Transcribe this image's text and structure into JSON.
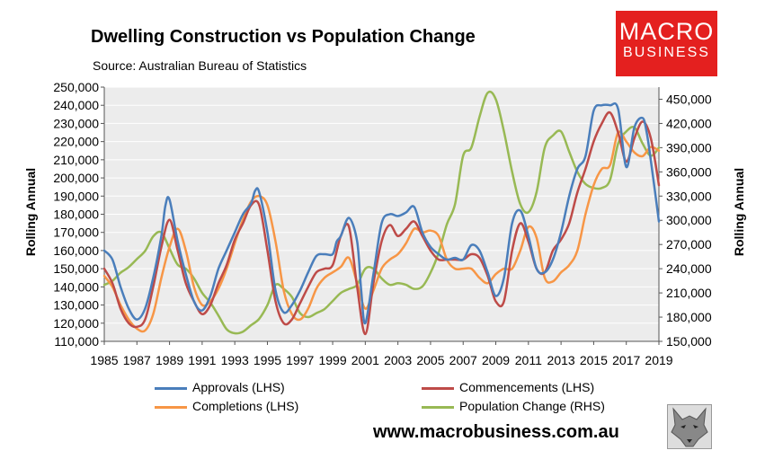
{
  "header": {
    "title": "Dwelling Construction vs Population Change",
    "source": "Source: Australian Bureau of Statistics"
  },
  "logo": {
    "line1": "MACRO",
    "line2": "BUSINESS"
  },
  "footer": {
    "website": "www.macrobusiness.com.au",
    "wolf_icon": "wolf-mascot-icon"
  },
  "colors": {
    "approvals": "#4a7ebb",
    "commencements": "#be4b48",
    "completions": "#f79646",
    "population": "#98b954",
    "gridline": "#d9d9d9",
    "plot_bg": "#ececec",
    "logo": "#e4201f"
  },
  "chart_data": {
    "type": "line",
    "ylabel": "Rolling Annual",
    "y2label": "Rolling Annual",
    "ylim": [
      110000,
      250000
    ],
    "y2lim": [
      150000,
      465000
    ],
    "yticks": [
      "110,000",
      "120,000",
      "130,000",
      "140,000",
      "150,000",
      "160,000",
      "170,000",
      "180,000",
      "190,000",
      "200,000",
      "210,000",
      "220,000",
      "230,000",
      "240,000",
      "250,000"
    ],
    "y2ticks": [
      "150,000",
      "180,000",
      "210,000",
      "240,000",
      "270,000",
      "300,000",
      "330,000",
      "360,000",
      "390,000",
      "420,000",
      "450,000"
    ],
    "xlim": [
      1985,
      2019
    ],
    "xticks": [
      "1985",
      "1987",
      "1989",
      "1991",
      "1993",
      "1995",
      "1997",
      "1999",
      "2001",
      "2003",
      "2005",
      "2007",
      "2009",
      "2011",
      "2013",
      "2015",
      "2017",
      "2019"
    ],
    "grid": true,
    "legend": "bottom",
    "series": [
      {
        "name": "Approvals (LHS)",
        "axis": "left",
        "x": [
          1985,
          1985.5,
          1986,
          1986.5,
          1987,
          1987.5,
          1988,
          1988.5,
          1988.75,
          1989,
          1989.5,
          1990,
          1990.5,
          1991,
          1991.5,
          1992,
          1992.5,
          1993,
          1993.5,
          1994,
          1994.25,
          1994.5,
          1995,
          1995.5,
          1996,
          1996.5,
          1997,
          1997.5,
          1998,
          1998.5,
          1999,
          1999.25,
          1999.5,
          2000,
          2000.5,
          2000.75,
          2001,
          2001.5,
          2002,
          2002.5,
          2003,
          2003.5,
          2004,
          2004.5,
          2005,
          2005.5,
          2006,
          2006.5,
          2007,
          2007.5,
          2008,
          2008.5,
          2009,
          2009.5,
          2010,
          2010.5,
          2011,
          2011.5,
          2012,
          2012.5,
          2013,
          2013.5,
          2014,
          2014.5,
          2015,
          2015.5,
          2016,
          2016.5,
          2017,
          2017.5,
          2018,
          2018.25,
          2018.5,
          2019
        ],
        "values": [
          160000,
          155000,
          140000,
          128000,
          122000,
          128000,
          145000,
          168000,
          185000,
          188000,
          165000,
          147000,
          132000,
          127000,
          135000,
          150000,
          160000,
          170000,
          180000,
          186000,
          193000,
          192000,
          170000,
          138000,
          126000,
          130000,
          138000,
          148000,
          157000,
          158000,
          158000,
          165000,
          168000,
          178000,
          165000,
          138000,
          120000,
          147000,
          175000,
          180000,
          179000,
          181000,
          184000,
          170000,
          162000,
          158000,
          155000,
          156000,
          155000,
          163000,
          160000,
          148000,
          135000,
          145000,
          175000,
          182000,
          168000,
          150000,
          148000,
          155000,
          170000,
          190000,
          205000,
          212000,
          237000,
          240000,
          240000,
          238000,
          206000,
          228000,
          233000,
          225000,
          210000,
          176000
        ]
      },
      {
        "name": "Commencements (LHS)",
        "axis": "left",
        "x": [
          1985,
          1985.5,
          1986,
          1986.5,
          1987,
          1987.5,
          1988,
          1988.5,
          1989,
          1989.5,
          1990,
          1990.5,
          1991,
          1991.5,
          1992,
          1992.5,
          1993,
          1993.5,
          1994,
          1994.5,
          1995,
          1995.5,
          1996,
          1996.5,
          1997,
          1997.5,
          1998,
          1998.5,
          1999,
          1999.5,
          2000,
          2000.5,
          2001,
          2001.5,
          2002,
          2002.5,
          2003,
          2003.5,
          2004,
          2004.5,
          2005,
          2005.5,
          2006,
          2006.5,
          2007,
          2007.5,
          2008,
          2008.5,
          2009,
          2009.5,
          2010,
          2010.5,
          2011,
          2011.5,
          2012,
          2012.5,
          2013,
          2013.5,
          2014,
          2014.5,
          2015,
          2015.5,
          2016,
          2016.5,
          2017,
          2017.5,
          2018,
          2018.5,
          2019
        ],
        "values": [
          150000,
          142000,
          128000,
          120000,
          118000,
          122000,
          140000,
          162000,
          177000,
          160000,
          142000,
          132000,
          125000,
          130000,
          142000,
          152000,
          166000,
          175000,
          185000,
          185000,
          160000,
          132000,
          120000,
          122000,
          131000,
          140000,
          148000,
          150000,
          152000,
          168000,
          173000,
          140000,
          114000,
          142000,
          165000,
          174000,
          168000,
          172000,
          176000,
          168000,
          160000,
          155000,
          155000,
          155000,
          155000,
          158000,
          156000,
          146000,
          132000,
          132000,
          160000,
          175000,
          165000,
          150000,
          148000,
          160000,
          166000,
          175000,
          192000,
          205000,
          220000,
          230000,
          236000,
          225000,
          209000,
          222000,
          231000,
          222000,
          196000
        ]
      },
      {
        "name": "Completions (LHS)",
        "axis": "left",
        "x": [
          1985,
          1985.5,
          1986,
          1986.5,
          1987,
          1987.5,
          1988,
          1988.5,
          1989,
          1989.5,
          1990,
          1990.5,
          1991,
          1991.5,
          1992,
          1992.5,
          1993,
          1993.5,
          1994,
          1994.5,
          1995,
          1995.5,
          1996,
          1996.5,
          1997,
          1997.5,
          1998,
          1998.5,
          1999,
          1999.5,
          2000,
          2000.5,
          2001,
          2001.5,
          2002,
          2002.5,
          2003,
          2003.5,
          2004,
          2004.5,
          2005,
          2005.5,
          2006,
          2006.5,
          2007,
          2007.5,
          2008,
          2008.5,
          2009,
          2009.5,
          2010,
          2010.5,
          2011,
          2011.5,
          2012,
          2012.5,
          2013,
          2013.5,
          2014,
          2014.5,
          2015,
          2015.5,
          2016,
          2016.5,
          2017,
          2017.5,
          2018,
          2018.5,
          2019
        ],
        "values": [
          146000,
          140000,
          130000,
          122000,
          117000,
          116000,
          125000,
          145000,
          162000,
          172000,
          160000,
          140000,
          130000,
          132000,
          139000,
          150000,
          164000,
          177000,
          187000,
          190000,
          185000,
          165000,
          138000,
          125000,
          122000,
          128000,
          139000,
          145000,
          148000,
          151000,
          156000,
          142000,
          128000,
          138000,
          150000,
          155000,
          158000,
          164000,
          172000,
          170000,
          171000,
          168000,
          155000,
          150000,
          150000,
          150000,
          145000,
          142000,
          147000,
          150000,
          150000,
          160000,
          173000,
          167000,
          145000,
          143000,
          148000,
          152000,
          160000,
          180000,
          196000,
          205000,
          207000,
          225000,
          220000,
          214000,
          212000,
          217000,
          215000
        ]
      },
      {
        "name": "Population Change (RHS)",
        "axis": "right",
        "x": [
          1985,
          1985.5,
          1986,
          1986.5,
          1987,
          1987.5,
          1988,
          1988.5,
          1989,
          1989.5,
          1990,
          1990.5,
          1991,
          1991.5,
          1992,
          1992.5,
          1993,
          1993.5,
          1994,
          1994.5,
          1995,
          1995.5,
          1996,
          1996.5,
          1997,
          1997.5,
          1998,
          1998.5,
          1999,
          1999.5,
          2000,
          2000.5,
          2001,
          2001.5,
          2002,
          2002.5,
          2003,
          2003.5,
          2004,
          2004.5,
          2005,
          2005.5,
          2006,
          2006.5,
          2007,
          2007.5,
          2008,
          2008.5,
          2009,
          2009.5,
          2010,
          2010.5,
          2011,
          2011.5,
          2012,
          2012.5,
          2013,
          2013.5,
          2014,
          2014.5,
          2015,
          2015.5,
          2016,
          2016.5,
          2017,
          2017.5,
          2018,
          2018.5,
          2019
        ],
        "values": [
          220000,
          225000,
          235000,
          242000,
          252000,
          262000,
          280000,
          285000,
          265000,
          245000,
          240000,
          228000,
          210000,
          198000,
          182000,
          165000,
          160000,
          162000,
          170000,
          178000,
          195000,
          220000,
          215000,
          205000,
          185000,
          180000,
          185000,
          190000,
          200000,
          210000,
          215000,
          220000,
          240000,
          240000,
          228000,
          220000,
          222000,
          220000,
          215000,
          218000,
          235000,
          260000,
          295000,
          320000,
          380000,
          390000,
          428000,
          458000,
          450000,
          410000,
          360000,
          320000,
          310000,
          335000,
          390000,
          405000,
          410000,
          385000,
          360000,
          345000,
          340000,
          340000,
          350000,
          395000,
          410000,
          415000,
          395000,
          380000,
          390000
        ]
      }
    ]
  }
}
